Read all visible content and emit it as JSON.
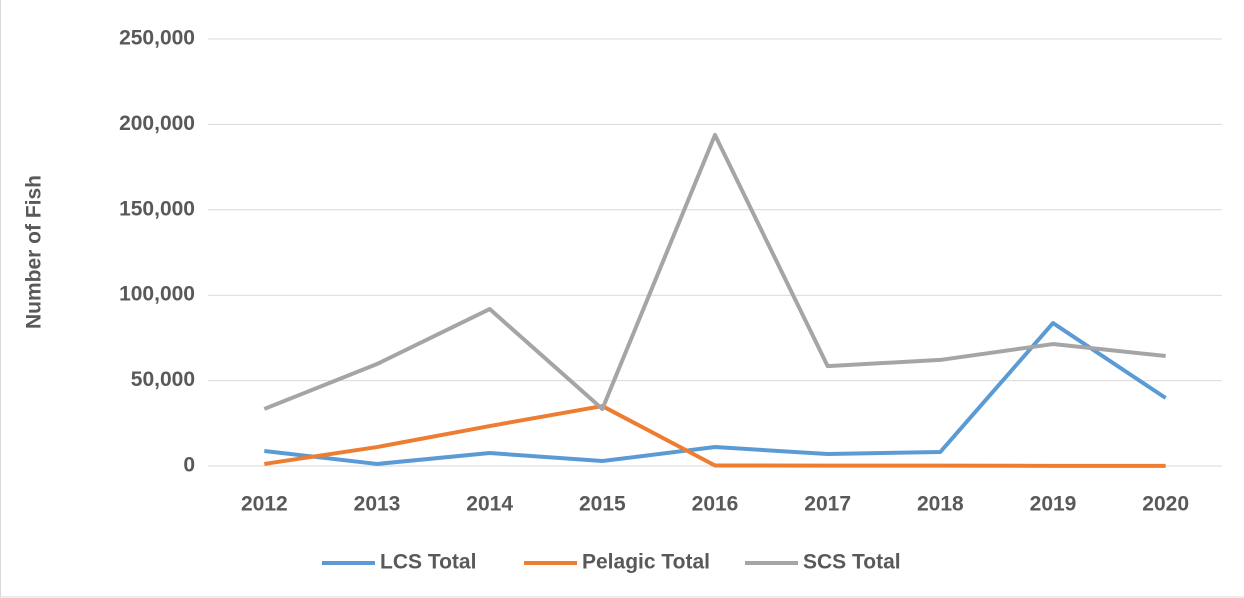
{
  "chart_data": {
    "type": "line",
    "y_label": "Number of Fish",
    "categories": [
      "2012",
      "2013",
      "2014",
      "2015",
      "2016",
      "2017",
      "2018",
      "2019",
      "2020"
    ],
    "series": [
      {
        "name": "LCS Total",
        "color": "#5b9bd5",
        "values": [
          8800,
          1200,
          7600,
          2900,
          11100,
          7000,
          8200,
          83700,
          39800
        ]
      },
      {
        "name": "Pelagic Total",
        "color": "#ed7d31",
        "values": [
          1200,
          11100,
          23400,
          35100,
          300,
          200,
          200,
          100,
          100
        ]
      },
      {
        "name": "SCS Total",
        "color": "#a5a5a5",
        "values": [
          33400,
          59700,
          91900,
          33400,
          193800,
          58500,
          62100,
          71400,
          64400
        ]
      }
    ],
    "ylim": [
      0,
      250000
    ],
    "yticks": [
      0,
      {
        "value": 50000,
        "label": "50,000"
      },
      {
        "value": 100000,
        "label": "100,000"
      },
      {
        "value": 150000,
        "label": "150,000"
      },
      {
        "value": 200000,
        "label": "200,000"
      },
      {
        "value": 250000,
        "label": "250,000"
      }
    ],
    "grid": true,
    "legend": "bottom"
  }
}
